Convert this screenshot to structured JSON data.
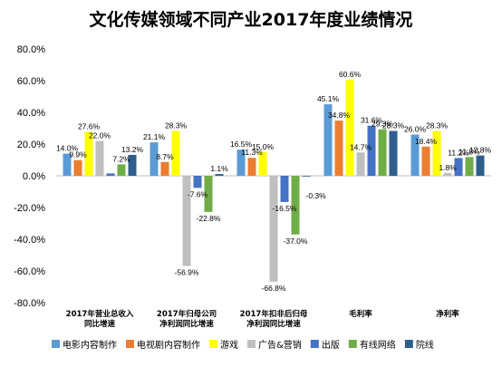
{
  "chart_data": {
    "type": "bar",
    "title": "文化传媒领域不同产业2017年度业绩情况",
    "ylim": [
      -80,
      80
    ],
    "yticks": [
      80,
      60,
      40,
      20,
      0,
      -20,
      -40,
      -60,
      -80
    ],
    "ytick_labels": [
      "80.0%",
      "60.0%",
      "40.0%",
      "20.0%",
      "0.0%",
      "-20.0%",
      "-40.0%",
      "-60.0%",
      "-80.0%"
    ],
    "grid": false,
    "legend_position": "bottom",
    "categories": [
      [
        "2017年营业总收入",
        "同比增速"
      ],
      [
        "2017年归母公司",
        "净利润同比增速"
      ],
      [
        "2017年扣非后归母",
        "净利润同比增速"
      ],
      [
        "毛利率"
      ],
      [
        "净利率"
      ]
    ],
    "series": [
      {
        "name": "电影内容制作",
        "color": "#5b9bd5",
        "values": [
          14.0,
          21.1,
          16.5,
          45.1,
          26.0
        ],
        "labels": [
          "14.0%",
          "21.1%",
          "16.5%",
          "45.1%",
          "26.0%"
        ]
      },
      {
        "name": "电视剧内容制作",
        "color": "#ed7d31",
        "values": [
          9.9,
          8.7,
          11.3,
          34.8,
          18.4
        ],
        "labels": [
          "9.9%",
          "8.7%",
          "11.3%",
          "34.8%",
          "18.4%"
        ]
      },
      {
        "name": "游戏",
        "color": "#ffff00",
        "values": [
          27.6,
          28.3,
          15.0,
          60.6,
          28.3
        ],
        "labels": [
          "27.6%",
          "28.3%",
          "15.0%",
          "60.6%",
          "28.3%"
        ]
      },
      {
        "name": "广告&营销",
        "color": "#bfbfbf",
        "values": [
          22.0,
          -56.9,
          -66.8,
          14.7,
          1.8
        ],
        "labels": [
          "22.0%",
          "-56.9%",
          "-66.8%",
          "14.7%",
          "1.8%"
        ]
      },
      {
        "name": "出版",
        "color": "#4472c4",
        "values": [
          1.5,
          -7.6,
          -16.5,
          31.6,
          11.2
        ],
        "labels": [
          "",
          "-7.6%",
          "-16.5%",
          "31.6%",
          "11.2%"
        ]
      },
      {
        "name": "有线网络",
        "color": "#70ad47",
        "values": [
          7.2,
          -22.8,
          -37.0,
          29.3,
          11.8
        ],
        "labels": [
          "7.2%",
          "-22.8%",
          "-37.0%",
          "29.3%",
          "11.8%"
        ]
      },
      {
        "name": "院线",
        "color": "#2e5e8c",
        "values": [
          13.2,
          1.1,
          -0.3,
          28.3,
          12.8
        ],
        "labels": [
          "13.2%",
          "1.1%",
          "-0.3%",
          "28.3%",
          "12.8%"
        ]
      }
    ]
  }
}
